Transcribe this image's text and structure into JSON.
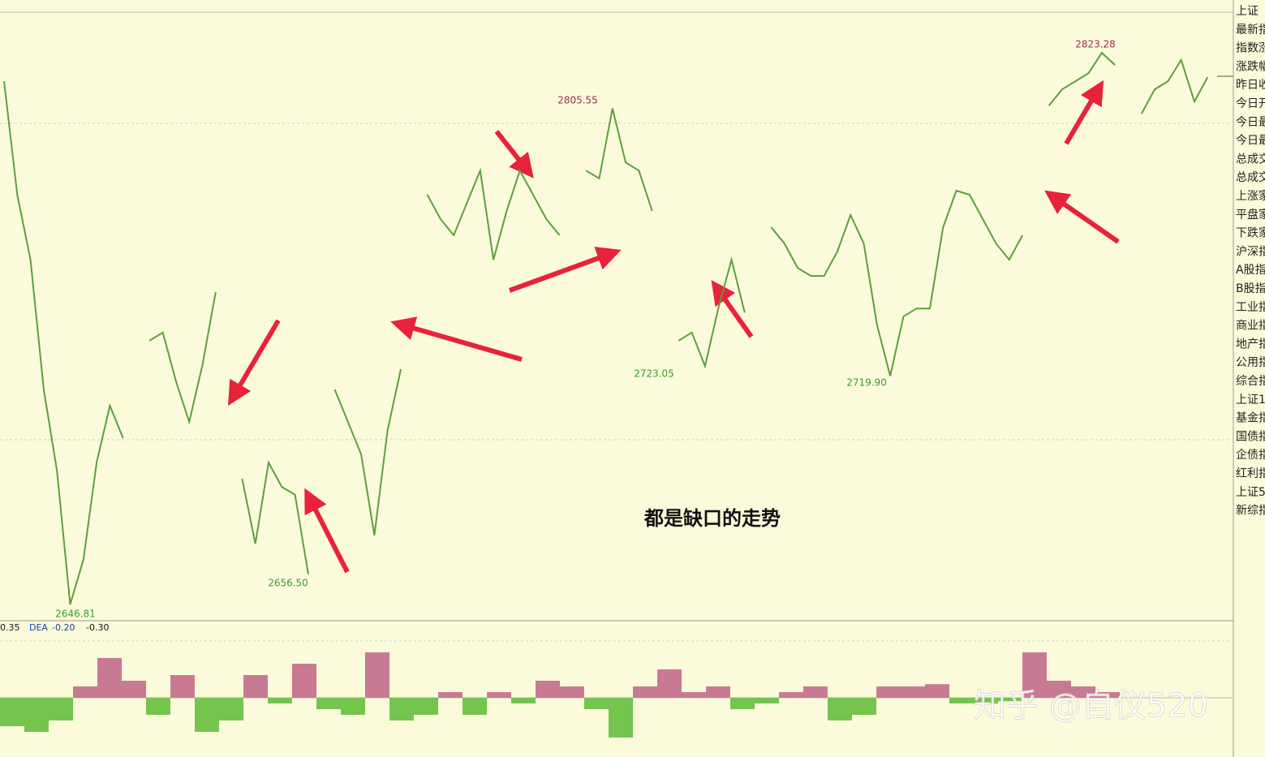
{
  "chart_data": [
    {
      "type": "line",
      "color": "#5e9e3c",
      "values": [
        2814.2,
        2777.9,
        2757.1,
        2715.6,
        2689.6,
        2646.81,
        2661.1,
        2692.2,
        2710.4,
        2700.0,
        null,
        2731.2,
        2733.8,
        2718.2,
        2705.2,
        2723.4,
        2746.7,
        null,
        2687.0,
        2666.3,
        2692.2,
        2684.4,
        2681.9,
        2656.5,
        null,
        2715.6,
        2705.2,
        2694.8,
        2668.9,
        2702.6,
        2722.1,
        null,
        2777.9,
        2770.1,
        2764.9,
        2775.3,
        2785.6,
        2757.1,
        2772.7,
        2785.6,
        2777.9,
        2770.1,
        2764.9,
        null,
        2785.6,
        2783.1,
        2805.55,
        2788.2,
        2785.6,
        2772.7,
        null,
        2731.2,
        2733.8,
        2723.05,
        2741.5,
        2757.1,
        2740.2,
        null,
        2767.5,
        2762.3,
        2754.5,
        2751.9,
        2751.9,
        2759.7,
        2771.4,
        2762.3,
        2736.3,
        2719.9,
        2738.9,
        2741.5,
        2741.5,
        2767.5,
        2779.2,
        2777.9,
        2770.1,
        2762.3,
        2757.1,
        2764.9,
        null,
        2806.4,
        2811.6,
        2814.2,
        2816.8,
        2823.28,
        2819.4,
        null,
        2803.8,
        2811.6,
        2814.2,
        2821.0,
        2807.7,
        2815.5
      ],
      "ylim": [
        2641.6,
        2836.3
      ],
      "annotations": [
        "2646.81",
        "2656.50",
        "2805.55",
        "2723.05",
        "2719.90",
        "2823.28",
        "都是缺口的走势"
      ]
    },
    {
      "type": "bar",
      "header_labels": [
        "0.35",
        "DEA",
        "-0.20",
        "-0.30"
      ],
      "up_color": "#c97a93",
      "down_color": "#74c44e",
      "values": [
        -0.25,
        -0.3,
        -0.2,
        0.1,
        0.35,
        0.15,
        -0.15,
        0.2,
        -0.3,
        -0.2,
        0.2,
        -0.05,
        0.3,
        -0.1,
        -0.15,
        0.4,
        -0.2,
        -0.15,
        0.05,
        -0.15,
        0.05,
        -0.05,
        0.15,
        0.1,
        -0.1,
        -0.35,
        0.1,
        0.25,
        0.05,
        0.1,
        -0.1,
        -0.05,
        0.05,
        0.1,
        -0.2,
        -0.15,
        0.1,
        0.1,
        0.12,
        -0.05,
        -0.05,
        -0.03,
        0.4,
        0.15,
        0.1,
        0.05
      ],
      "ylim": [
        -0.5,
        0.5
      ]
    }
  ],
  "sidebar": {
    "items": [
      "上证",
      "最新指",
      "指数涨",
      "涨跌幅",
      "昨日收",
      "今日开",
      "今日最",
      "今日最",
      "总成交",
      "总成交",
      "上涨家",
      "平盘家",
      "下跌家",
      "沪深指",
      "A股指",
      "B股指",
      "工业指",
      "商业指",
      "地产指",
      "公用指",
      "综合指",
      "上证1",
      "基金指",
      "国债指",
      "企债指",
      "红利指",
      "上证5",
      "新综指"
    ]
  },
  "watermark": "知乎 @自仪520"
}
